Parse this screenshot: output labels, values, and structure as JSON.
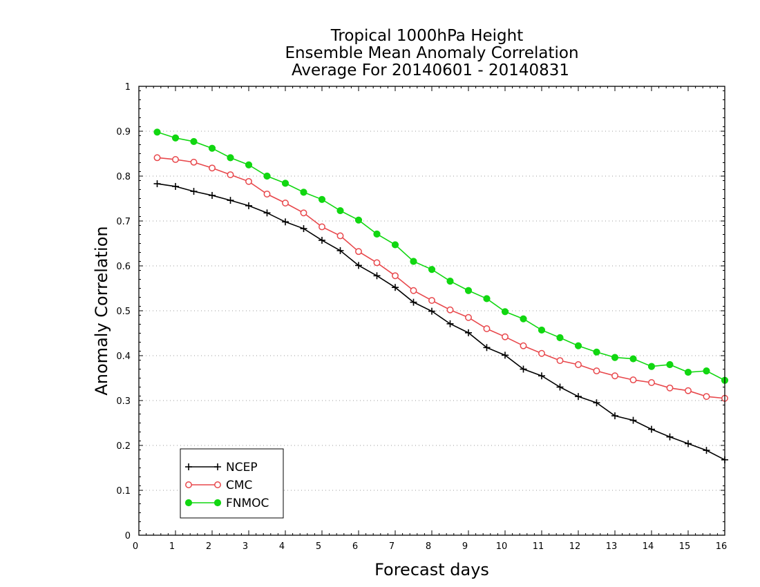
{
  "chart_data": {
    "type": "line",
    "title": "Tropical 1000hPa Height",
    "subtitle": "Ensemble Mean Anomaly Correlation",
    "subtitle2": "Average For 20140601 - 20140831",
    "xlabel": "Forecast days",
    "ylabel": "Anomaly Correlation",
    "xlim": [
      0,
      16
    ],
    "ylim": [
      0,
      1
    ],
    "xticks": [
      "0",
      "1",
      "2",
      "3",
      "4",
      "5",
      "6",
      "7",
      "8",
      "9",
      "10",
      "11",
      "12",
      "13",
      "14",
      "15",
      "16"
    ],
    "yticks": [
      "0",
      "0.1",
      "0.2",
      "0.3",
      "0.4",
      "0.5",
      "0.6",
      "0.7",
      "0.8",
      "0.9",
      "1"
    ],
    "grid": "dotted horizontal",
    "legend_position": "bottom-left",
    "x": [
      0.5,
      1,
      1.5,
      2,
      2.5,
      3,
      3.5,
      4,
      4.5,
      5,
      5.5,
      6,
      6.5,
      7,
      7.5,
      8,
      8.5,
      9,
      9.5,
      10,
      10.5,
      11,
      11.5,
      12,
      12.5,
      13,
      13.5,
      14,
      14.5,
      15,
      15.5,
      16
    ],
    "series": [
      {
        "name": "NCEP",
        "color": "#000000",
        "marker": "plus",
        "values": [
          0.783,
          0.777,
          0.766,
          0.757,
          0.746,
          0.734,
          0.718,
          0.698,
          0.683,
          0.657,
          0.634,
          0.601,
          0.578,
          0.552,
          0.519,
          0.499,
          0.471,
          0.451,
          0.418,
          0.401,
          0.37,
          0.355,
          0.33,
          0.309,
          0.295,
          0.266,
          0.256,
          0.236,
          0.219,
          0.204,
          0.189,
          0.168
        ]
      },
      {
        "name": "CMC",
        "color": "#e8474b",
        "marker": "open-circle",
        "values": [
          0.841,
          0.837,
          0.831,
          0.818,
          0.803,
          0.788,
          0.76,
          0.74,
          0.718,
          0.687,
          0.667,
          0.632,
          0.607,
          0.578,
          0.545,
          0.523,
          0.502,
          0.485,
          0.46,
          0.442,
          0.422,
          0.405,
          0.389,
          0.38,
          0.366,
          0.355,
          0.346,
          0.34,
          0.328,
          0.322,
          0.309,
          0.305
        ]
      },
      {
        "name": "FNMOC",
        "color": "#11d711",
        "marker": "filled-circle",
        "values": [
          0.898,
          0.885,
          0.877,
          0.862,
          0.841,
          0.825,
          0.8,
          0.784,
          0.764,
          0.748,
          0.723,
          0.702,
          0.671,
          0.647,
          0.61,
          0.592,
          0.566,
          0.545,
          0.527,
          0.498,
          0.482,
          0.457,
          0.44,
          0.422,
          0.408,
          0.396,
          0.393,
          0.376,
          0.38,
          0.363,
          0.366,
          0.345
        ]
      }
    ]
  }
}
